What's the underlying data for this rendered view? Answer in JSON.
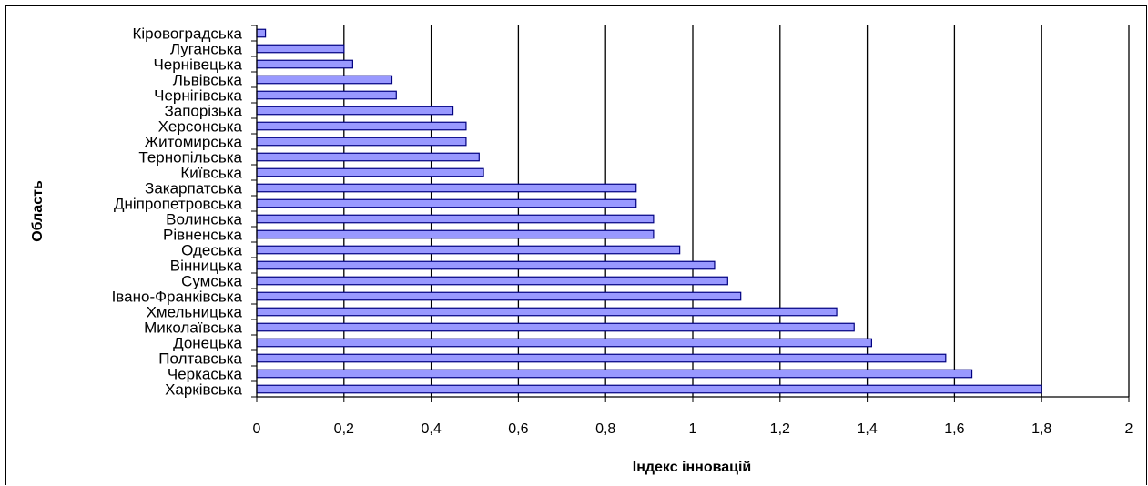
{
  "chart_data": {
    "type": "bar",
    "orientation": "horizontal",
    "categories": [
      "Кіровоградська",
      "Луганська",
      "Чернівецька",
      "Львівська",
      "Чернігівська",
      "Запорізька",
      "Херсонська",
      "Житомирська",
      "Тернопільська",
      "Київська",
      "Закарпатська",
      "Дніпропетровська",
      "Волинська",
      "Рівненська",
      "Одеська",
      "Вінницька",
      "Сумська",
      "Івано-Франківська",
      "Хмельницька",
      "Миколаївська",
      "Донецька",
      "Полтавська",
      "Черкаська",
      "Харківська"
    ],
    "values": [
      0.02,
      0.2,
      0.22,
      0.31,
      0.32,
      0.45,
      0.48,
      0.48,
      0.51,
      0.52,
      0.87,
      0.87,
      0.91,
      0.91,
      0.97,
      1.05,
      1.08,
      1.11,
      1.33,
      1.37,
      1.41,
      1.58,
      1.64,
      1.8
    ],
    "xlabel": "Індекс інновацій",
    "ylabel": "Область",
    "xlim": [
      0,
      2
    ],
    "xticks": [
      "0",
      "0,2",
      "0,4",
      "0,6",
      "0,8",
      "1",
      "1,2",
      "1,4",
      "1,6",
      "1,8",
      "2"
    ],
    "grid": "vertical",
    "bar_color": "#9999ff",
    "bar_edge_color": "#000080"
  }
}
